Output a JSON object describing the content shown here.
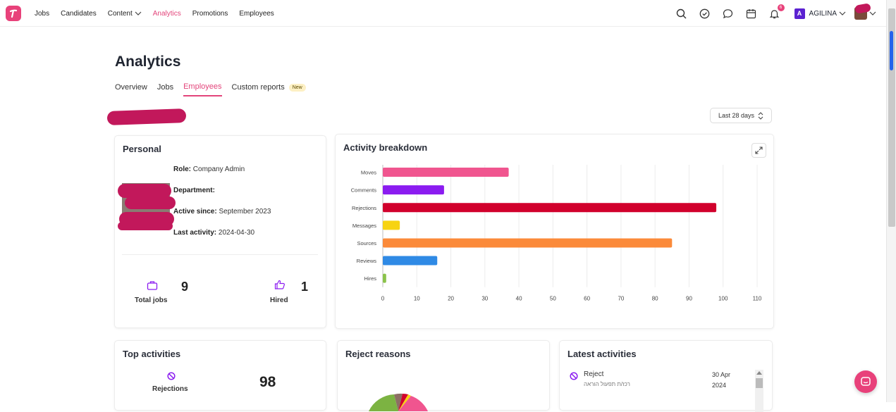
{
  "nav": {
    "items": [
      {
        "label": "Jobs",
        "active": false,
        "dropdown": false
      },
      {
        "label": "Candidates",
        "active": false,
        "dropdown": false
      },
      {
        "label": "Content",
        "active": false,
        "dropdown": true
      },
      {
        "label": "Analytics",
        "active": true,
        "dropdown": false
      },
      {
        "label": "Promotions",
        "active": false,
        "dropdown": false
      },
      {
        "label": "Employees",
        "active": false,
        "dropdown": false
      }
    ],
    "notification_count": "6",
    "company_initial": "A",
    "company_name": "AGILINA",
    "accent": "#e3457b"
  },
  "page": {
    "title": "Analytics",
    "tabs": [
      {
        "label": "Overview",
        "active": false
      },
      {
        "label": "Jobs",
        "active": false
      },
      {
        "label": "Employees",
        "active": true
      },
      {
        "label": "Custom reports",
        "active": false
      }
    ],
    "new_badge": "New",
    "date_range": "Last 28 days"
  },
  "personal": {
    "title": "Personal",
    "role_label": "Role:",
    "role_value": "Company Admin",
    "department_label": "Department:",
    "department_value": "",
    "active_since_label": "Active since:",
    "active_since_value": "September 2023",
    "last_activity_label": "Last activity:",
    "last_activity_value": "2024-04-30",
    "total_jobs_value": "9",
    "total_jobs_label": "Total jobs",
    "hired_value": "1",
    "hired_label": "Hired"
  },
  "activity": {
    "title": "Activity breakdown"
  },
  "chart_data": {
    "type": "bar",
    "orientation": "horizontal",
    "categories": [
      "Moves",
      "Comments",
      "Rejections",
      "Messages",
      "Sources",
      "Reviews",
      "Hires"
    ],
    "values": [
      37,
      18,
      98,
      5,
      85,
      16,
      1
    ],
    "colors": [
      "#f0558f",
      "#8b1cf0",
      "#d1002c",
      "#f7d313",
      "#fb8a3a",
      "#2f8ae5",
      "#8bc34a"
    ],
    "xlim": [
      0,
      110
    ],
    "xticks": [
      0,
      10,
      20,
      30,
      40,
      50,
      60,
      70,
      80,
      90,
      100,
      110
    ],
    "grid": true
  },
  "top_activities": {
    "title": "Top activities",
    "item_label": "Rejections",
    "item_value": "98"
  },
  "reject_reasons": {
    "title": "Reject reasons"
  },
  "latest_activities": {
    "title": "Latest activities",
    "items": [
      {
        "action": "Reject",
        "sub": "רכז/ת תפעול הוראה",
        "date_line1": "30 Apr",
        "date_line2": "2024"
      }
    ]
  }
}
